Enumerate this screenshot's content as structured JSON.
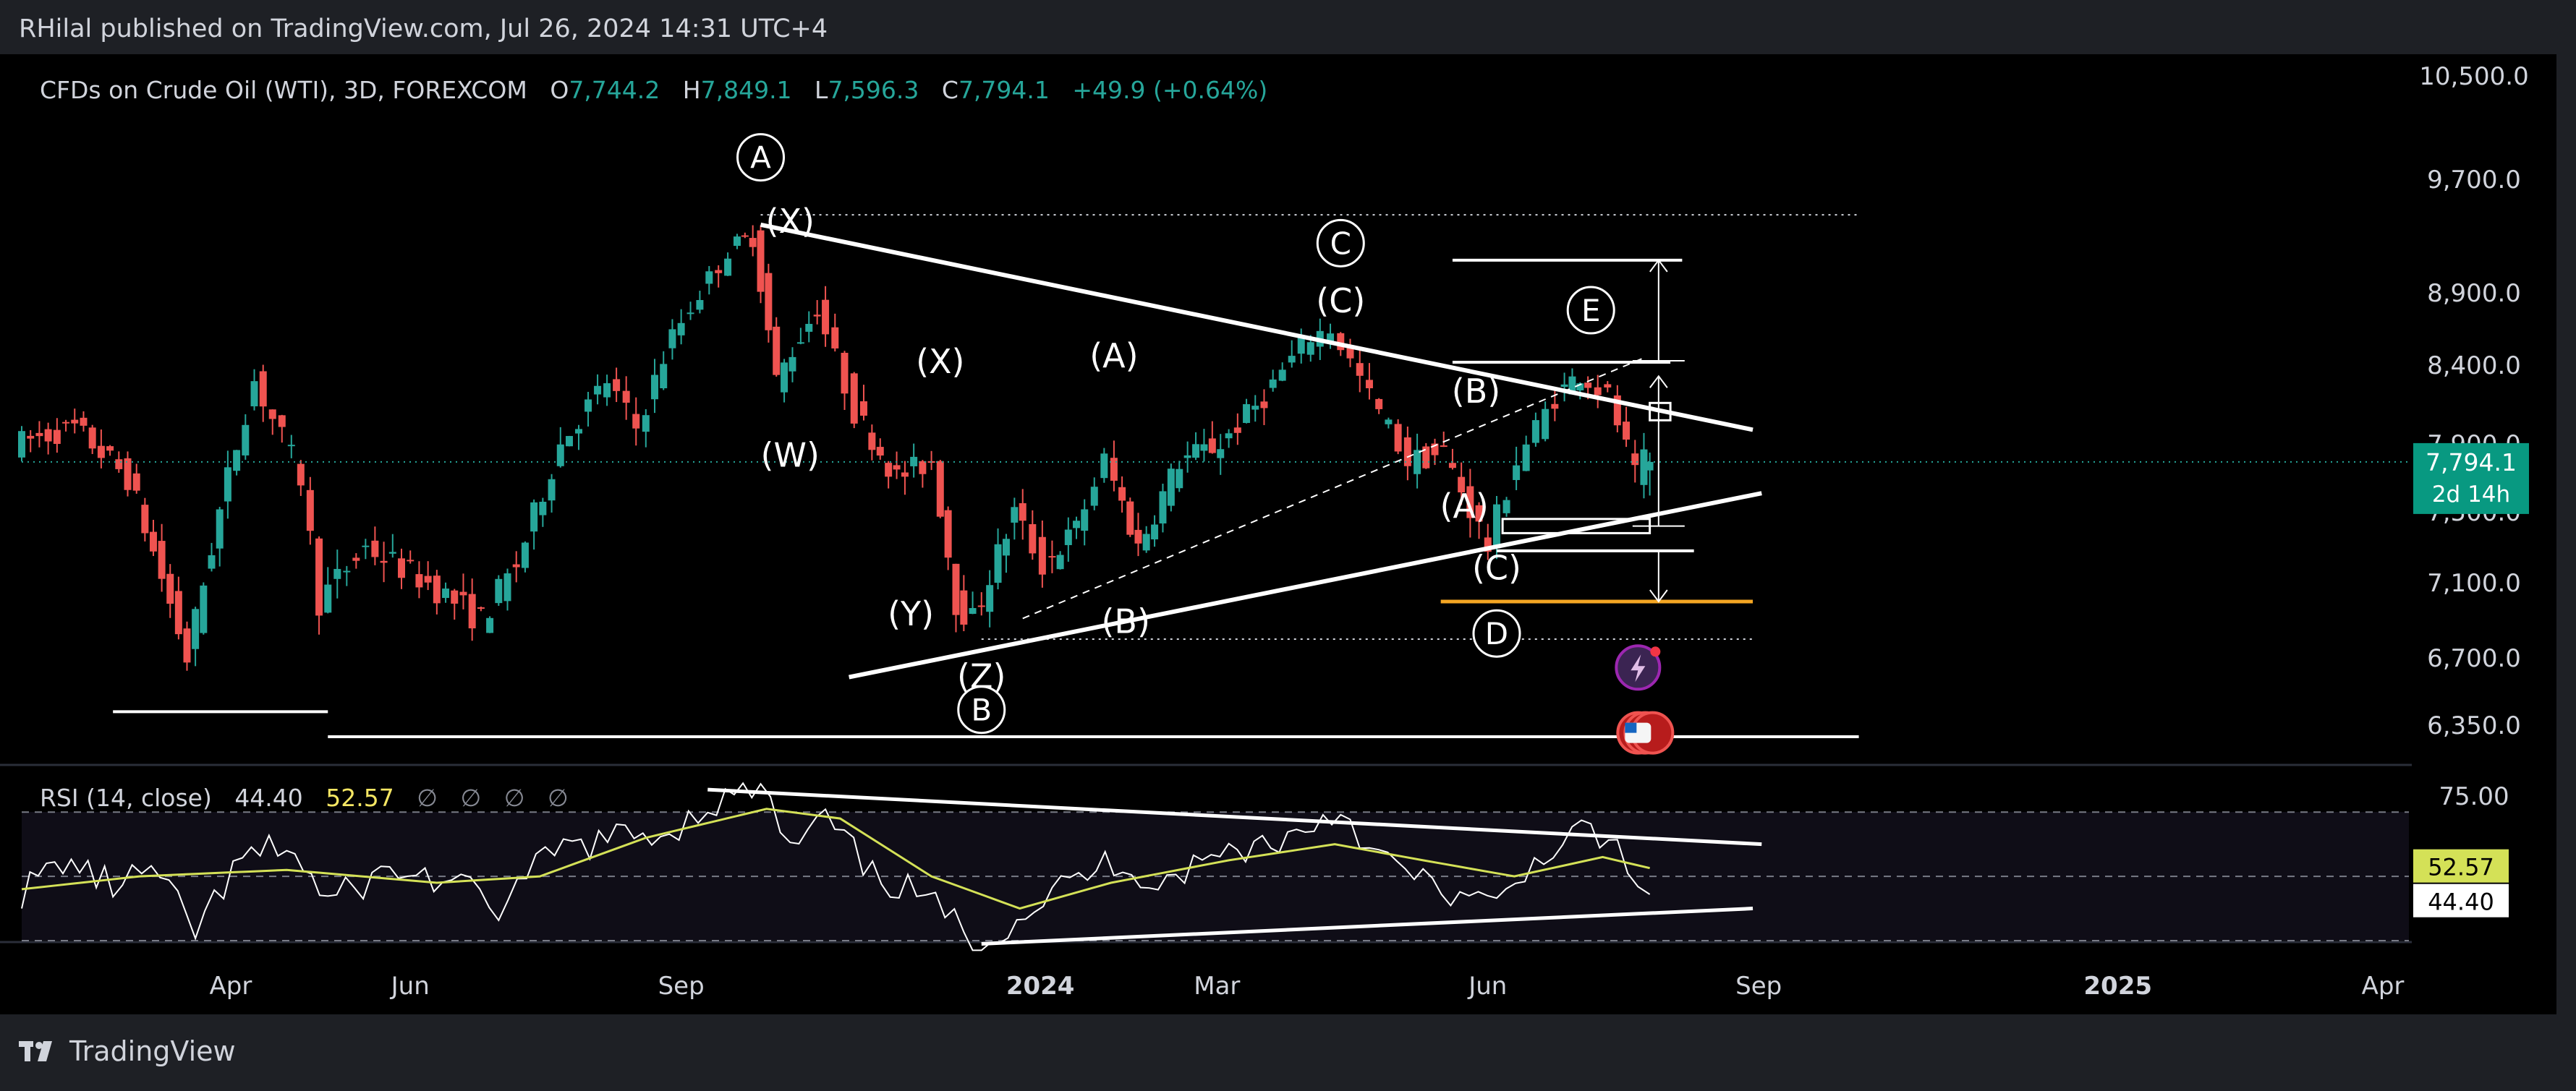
{
  "publisher_line": "RHilal published on TradingView.com, Jul 26, 2024 14:31 UTC+4",
  "brand_name": "TradingView",
  "legend": {
    "symbol": "CFDs on Crude Oil (WTI), 3D, FOREXCOM",
    "open_label": "O",
    "open_value": "7,744.2",
    "high_label": "H",
    "high_value": "7,849.1",
    "low_label": "L",
    "low_value": "7,596.3",
    "close_label": "C",
    "close_value": "7,794.1",
    "change": "+49.9 (+0.64%)"
  },
  "price_badge": {
    "price": "7,794.1",
    "countdown": "2d 14h"
  },
  "rsi_legend": {
    "label": "RSI (14, close)",
    "rsi_value": "44.40",
    "ma_value": "52.57",
    "placeholders": [
      "∅",
      "∅",
      "∅",
      "∅"
    ]
  },
  "colors": {
    "up": "#26a69a",
    "down": "#ef5350",
    "rsi": "#ffffff",
    "rsi_ma": "#d4e157",
    "accent": "#089981",
    "support": "#f5a623"
  },
  "chart_data": [
    {
      "type": "candlestick",
      "title": "CFDs on Crude Oil (WTI), 3D, FOREXCOM",
      "x_tick_labels": [
        "Apr",
        "Jun",
        "Sep",
        "2024",
        "Mar",
        "Jun",
        "Sep",
        "2025",
        "Apr"
      ],
      "y_tick_labels": [
        "10,500.0",
        "9,700.0",
        "8,900.0",
        "8,400.0",
        "7,900.0",
        "7,500.0",
        "7,100.0",
        "6,700.0",
        "6,350.0"
      ],
      "y_ticks": [
        10500,
        9700,
        8900,
        8400,
        7900,
        7500,
        7100,
        6700,
        6350
      ],
      "series_path": [
        [
          "2023-01-20",
          7900
        ],
        [
          "2023-02-10",
          8000
        ],
        [
          "2023-02-28",
          7700
        ],
        [
          "2023-03-20",
          6700
        ],
        [
          "2023-03-31",
          7500
        ],
        [
          "2023-04-12",
          8300
        ],
        [
          "2023-04-28",
          7700
        ],
        [
          "2023-05-04",
          7000
        ],
        [
          "2023-05-20",
          7300
        ],
        [
          "2023-06-10",
          7100
        ],
        [
          "2023-06-28",
          6900
        ],
        [
          "2023-07-10",
          7200
        ],
        [
          "2023-07-25",
          7900
        ],
        [
          "2023-08-10",
          8300
        ],
        [
          "2023-08-20",
          8000
        ],
        [
          "2023-09-01",
          8600
        ],
        [
          "2023-09-20",
          9200
        ],
        [
          "2023-09-28",
          9300
        ],
        [
          "2023-10-06",
          8300
        ],
        [
          "2023-10-20",
          8800
        ],
        [
          "2023-11-02",
          8100
        ],
        [
          "2023-11-16",
          7700
        ],
        [
          "2023-11-28",
          7800
        ],
        [
          "2023-12-06",
          7000
        ],
        [
          "2023-12-12",
          6900
        ],
        [
          "2023-12-26",
          7500
        ],
        [
          "2024-01-05",
          7200
        ],
        [
          "2024-01-16",
          7400
        ],
        [
          "2024-01-26",
          7800
        ],
        [
          "2024-02-06",
          7300
        ],
        [
          "2024-02-20",
          7800
        ],
        [
          "2024-03-05",
          7900
        ],
        [
          "2024-03-20",
          8200
        ],
        [
          "2024-04-05",
          8600
        ],
        [
          "2024-04-12",
          8650
        ],
        [
          "2024-04-25",
          8200
        ],
        [
          "2024-05-08",
          7800
        ],
        [
          "2024-05-20",
          7850
        ],
        [
          "2024-06-04",
          7300
        ],
        [
          "2024-06-14",
          7800
        ],
        [
          "2024-06-27",
          8200
        ],
        [
          "2024-07-05",
          8350
        ],
        [
          "2024-07-15",
          8200
        ],
        [
          "2024-07-24",
          7700
        ],
        [
          "2024-07-26",
          7794.1
        ]
      ],
      "last_bar": {
        "open": 7744.2,
        "high": 7849.1,
        "low": 7596.3,
        "close": 7794.1
      },
      "last_price": 7794.1,
      "ohlc_last_candle": true,
      "wave_labels": [
        {
          "text": "A",
          "date": "2023-09-28",
          "price": 9870,
          "circled": true
        },
        {
          "text": "(X)",
          "date": "2023-10-08",
          "price": 9400,
          "circled": false
        },
        {
          "text": "(W)",
          "date": "2023-10-08",
          "price": 7830,
          "circled": false
        },
        {
          "text": "(X)",
          "date": "2023-11-28",
          "price": 8420,
          "circled": false
        },
        {
          "text": "(Y)",
          "date": "2023-11-18",
          "price": 6930,
          "circled": false
        },
        {
          "text": "(Z)",
          "date": "2023-12-12",
          "price": 6600,
          "circled": false
        },
        {
          "text": "B",
          "date": "2023-12-12",
          "price": 6430,
          "circled": true
        },
        {
          "text": "(A)",
          "date": "2024-01-26",
          "price": 8460,
          "circled": false
        },
        {
          "text": "(B)",
          "date": "2024-01-30",
          "price": 6890,
          "circled": false
        },
        {
          "text": "C",
          "date": "2024-04-12",
          "price": 9250,
          "circled": true
        },
        {
          "text": "(C)",
          "date": "2024-04-12",
          "price": 8840,
          "circled": false
        },
        {
          "text": "(A)",
          "date": "2024-05-24",
          "price": 7530,
          "circled": false
        },
        {
          "text": "(B)",
          "date": "2024-05-28",
          "price": 8230,
          "circled": false
        },
        {
          "text": "(C)",
          "date": "2024-06-04",
          "price": 7180,
          "circled": false
        },
        {
          "text": "D",
          "date": "2024-06-04",
          "price": 6830,
          "circled": true
        },
        {
          "text": "E",
          "date": "2024-07-06",
          "price": 8780,
          "circled": true
        }
      ],
      "trendlines": [
        {
          "from": [
            "2023-09-28",
            9380
          ],
          "to": [
            "2024-08-30",
            7990
          ],
          "style": "solid"
        },
        {
          "from": [
            "2023-10-28",
            6600
          ],
          "to": [
            "2024-09-02",
            7610
          ],
          "style": "solid"
        },
        {
          "from": [
            "2023-12-26",
            6910
          ],
          "to": [
            "2024-07-24",
            8450
          ],
          "style": "dashed"
        }
      ],
      "horizontal_levels": [
        {
          "from": "2023-02-20",
          "to": "2023-05-04",
          "price": 6420,
          "style": "solid"
        },
        {
          "from": "2023-05-04",
          "to": "2024-10-05",
          "price": 6290,
          "style": "solid"
        },
        {
          "from": "2023-09-28",
          "to": "2024-10-05",
          "price": 9450,
          "style": "dotted"
        },
        {
          "from": "2023-12-12",
          "to": "2024-08-30",
          "price": 6800,
          "style": "dotted"
        },
        {
          "from": "2024-05-20",
          "to": "2024-08-06",
          "price": 9130,
          "style": "solid"
        },
        {
          "from": "2024-05-20",
          "to": "2024-08-02",
          "price": 8420,
          "style": "solid"
        },
        {
          "from": "2024-06-04",
          "to": "2024-08-10",
          "price": 7280,
          "style": "solid"
        },
        {
          "from": "2024-05-16",
          "to": "2024-08-30",
          "price": 7000,
          "style": "solid",
          "color": "support"
        }
      ],
      "price_boxes": [
        {
          "from": "2024-06-06",
          "to": "2024-07-26",
          "low": 7380,
          "high": 7460
        },
        {
          "from": "2024-07-26",
          "to": "2024-08-02",
          "low": 8050,
          "high": 8160
        }
      ],
      "arrows": [
        {
          "date": "2024-07-29",
          "from": 8430,
          "to": 9130
        },
        {
          "date": "2024-07-29",
          "from": 7420,
          "to": 8330
        },
        {
          "date": "2024-07-29",
          "from": 7280,
          "to": 7000
        }
      ]
    },
    {
      "type": "line",
      "title": "RSI (14, close)",
      "y_tick_labels": [
        "75.00"
      ],
      "levels": [
        70,
        50,
        30
      ],
      "ylim": [
        26,
        80
      ],
      "series": [
        {
          "name": "RSI",
          "values_path": [
            [
              "2023-01-20",
              45
            ],
            [
              "2023-02-03",
              55
            ],
            [
              "2023-02-20",
              47
            ],
            [
              "2023-03-05",
              52
            ],
            [
              "2023-03-20",
              33
            ],
            [
              "2023-04-05",
              55
            ],
            [
              "2023-04-20",
              60
            ],
            [
              "2023-05-04",
              42
            ],
            [
              "2023-05-25",
              52
            ],
            [
              "2023-06-15",
              48
            ],
            [
              "2023-07-01",
              40
            ],
            [
              "2023-07-20",
              58
            ],
            [
              "2023-08-10",
              62
            ],
            [
              "2023-08-28",
              64
            ],
            [
              "2023-09-10",
              72
            ],
            [
              "2023-09-28",
              78
            ],
            [
              "2023-10-08",
              58
            ],
            [
              "2023-10-20",
              68
            ],
            [
              "2023-11-05",
              50
            ],
            [
              "2023-11-20",
              45
            ],
            [
              "2023-12-06",
              33
            ],
            [
              "2023-12-12",
              29
            ],
            [
              "2024-01-05",
              45
            ],
            [
              "2024-01-26",
              55
            ],
            [
              "2024-02-10",
              48
            ],
            [
              "2024-03-05",
              58
            ],
            [
              "2024-03-25",
              62
            ],
            [
              "2024-04-12",
              71
            ],
            [
              "2024-04-25",
              56
            ],
            [
              "2024-05-10",
              48
            ],
            [
              "2024-06-04",
              40
            ],
            [
              "2024-06-20",
              58
            ],
            [
              "2024-07-06",
              64
            ],
            [
              "2024-07-15",
              58
            ],
            [
              "2024-07-22",
              44
            ],
            [
              "2024-07-26",
              44.4
            ]
          ]
        },
        {
          "name": "RSI-based MA",
          "values_path": [
            [
              "2023-01-20",
              46
            ],
            [
              "2023-03-01",
              50
            ],
            [
              "2023-04-20",
              52
            ],
            [
              "2023-06-10",
              48
            ],
            [
              "2023-07-15",
              50
            ],
            [
              "2023-08-20",
              62
            ],
            [
              "2023-09-30",
              71
            ],
            [
              "2023-10-25",
              68
            ],
            [
              "2023-11-25",
              50
            ],
            [
              "2023-12-25",
              40
            ],
            [
              "2024-01-25",
              48
            ],
            [
              "2024-03-05",
              55
            ],
            [
              "2024-04-10",
              60
            ],
            [
              "2024-05-10",
              55
            ],
            [
              "2024-06-10",
              50
            ],
            [
              "2024-07-10",
              56
            ],
            [
              "2024-07-26",
              52.57
            ]
          ]
        }
      ],
      "trendlines": [
        {
          "from": [
            "2023-09-10",
            77
          ],
          "to": [
            "2024-09-02",
            60
          ]
        },
        {
          "from": [
            "2023-12-12",
            29
          ],
          "to": [
            "2024-08-30",
            40
          ]
        }
      ]
    }
  ],
  "x_ticks": [
    {
      "label": "Apr",
      "date": "2023-04-01"
    },
    {
      "label": "Jun",
      "date": "2023-06-01"
    },
    {
      "label": "Sep",
      "date": "2023-09-01"
    },
    {
      "label": "2024",
      "date": "2024-01-01",
      "bold": true
    },
    {
      "label": "Mar",
      "date": "2024-03-01"
    },
    {
      "label": "Jun",
      "date": "2024-06-01"
    },
    {
      "label": "Sep",
      "date": "2024-09-01"
    },
    {
      "label": "2025",
      "date": "2025-01-01",
      "bold": true
    },
    {
      "label": "Apr",
      "date": "2025-04-01"
    }
  ],
  "rsi_axis": [
    {
      "label": "75.00",
      "value": 75
    }
  ]
}
